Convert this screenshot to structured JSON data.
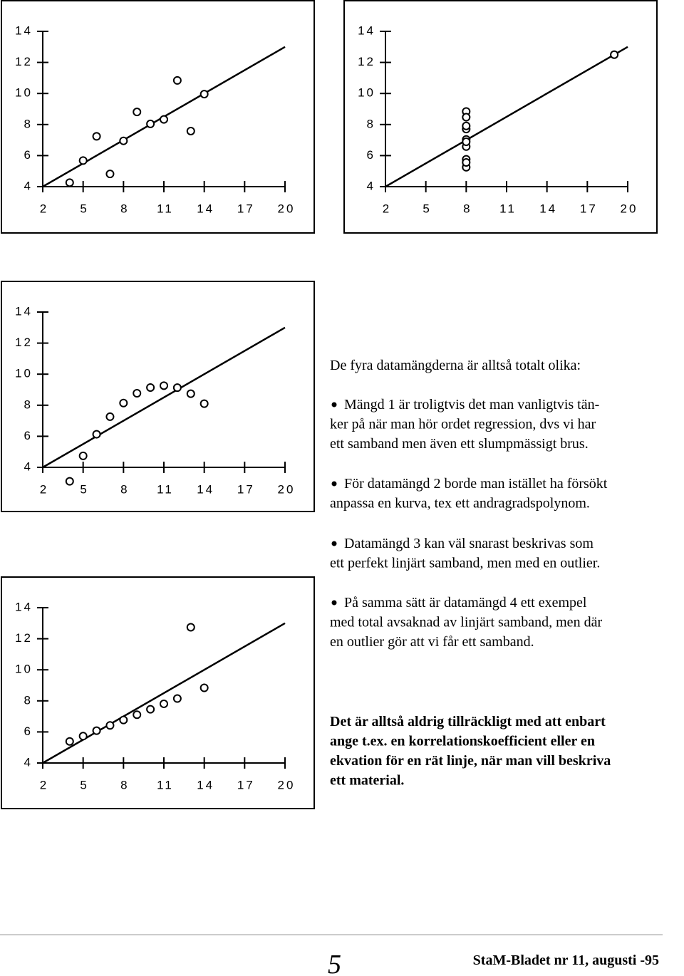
{
  "chart_data": [
    {
      "type": "scatter",
      "x": [
        10,
        8,
        13,
        9,
        11,
        14,
        6,
        4,
        12,
        7,
        5
      ],
      "values": [
        8.04,
        6.95,
        7.58,
        8.81,
        8.33,
        9.96,
        7.24,
        4.26,
        10.84,
        4.82,
        5.68
      ],
      "color": "#000000",
      "fit_line": {
        "x": [
          2,
          20
        ],
        "y": [
          4,
          13
        ]
      },
      "xlim": [
        2,
        20
      ],
      "ylim": [
        4,
        14
      ],
      "xticks": [
        2,
        5,
        8,
        11,
        14,
        17,
        20
      ],
      "yticks": [
        4,
        6,
        8,
        10,
        12,
        14
      ]
    },
    {
      "type": "scatter",
      "x": [
        8,
        8,
        8,
        8,
        8,
        8,
        8,
        19,
        8,
        8,
        8
      ],
      "values": [
        6.58,
        5.76,
        7.71,
        8.84,
        8.47,
        7.04,
        5.25,
        12.5,
        5.56,
        7.91,
        6.89
      ],
      "color": "#000000",
      "fit_line": {
        "x": [
          2,
          20
        ],
        "y": [
          4,
          13
        ]
      },
      "xlim": [
        2,
        20
      ],
      "ylim": [
        4,
        14
      ],
      "xticks": [
        2,
        5,
        8,
        11,
        14,
        17,
        20
      ],
      "yticks": [
        4,
        6,
        8,
        10,
        12,
        14
      ]
    },
    {
      "type": "scatter",
      "x": [
        10,
        8,
        13,
        9,
        11,
        14,
        6,
        4,
        12,
        7,
        5
      ],
      "values": [
        9.14,
        8.14,
        8.74,
        8.77,
        9.26,
        8.1,
        6.13,
        3.1,
        9.13,
        7.26,
        4.74
      ],
      "color": "#000000",
      "fit_line": {
        "x": [
          2,
          20
        ],
        "y": [
          4,
          13
        ]
      },
      "xlim": [
        2,
        20
      ],
      "ylim": [
        4,
        14
      ],
      "xticks": [
        2,
        5,
        8,
        11,
        14,
        17,
        20
      ],
      "yticks": [
        4,
        6,
        8,
        10,
        12,
        14
      ]
    },
    {
      "type": "scatter",
      "x": [
        10,
        8,
        13,
        9,
        11,
        14,
        6,
        4,
        12,
        7,
        5
      ],
      "values": [
        7.46,
        6.77,
        12.74,
        7.11,
        7.81,
        8.84,
        6.08,
        5.39,
        8.15,
        6.42,
        5.73
      ],
      "color": "#000000",
      "fit_line": {
        "x": [
          2,
          20
        ],
        "y": [
          4,
          13
        ]
      },
      "xlim": [
        2,
        20
      ],
      "ylim": [
        4,
        14
      ],
      "xticks": [
        2,
        5,
        8,
        11,
        14,
        17,
        20
      ],
      "yticks": [
        4,
        6,
        8,
        10,
        12,
        14
      ]
    }
  ],
  "text": {
    "heading": "De fyra datamängderna är alltså totalt olika:",
    "bullets": [
      [
        "Mängd 1 är troligtvis det man vanligtvis tän-",
        "ker på när man hör ordet regression, dvs vi har",
        "ett samband men även ett slumpmässigt brus."
      ],
      [
        "För datamängd 2 borde man istället ha försökt",
        "anpassa en kurva, tex ett andragradspolynom."
      ],
      [
        "Datamängd 3 kan väl snarast beskrivas som",
        "ett perfekt linjärt samband, men med en outlier."
      ],
      [
        "På samma sätt  är datamängd 4 ett exempel",
        "med total avsaknad av linjärt samband, men där",
        "en outlier gör att vi får ett samband."
      ]
    ],
    "conclusion": [
      "Det är alltså aldrig tillräckligt med att enbart",
      "ange t.ex. en korrelationskoefficient eller en",
      "ekvation för en rät linje, när man vill beskriva",
      "ett material."
    ]
  },
  "footer": {
    "page": "5",
    "publication": "StaM-Bladet nr 11, augusti -95"
  }
}
